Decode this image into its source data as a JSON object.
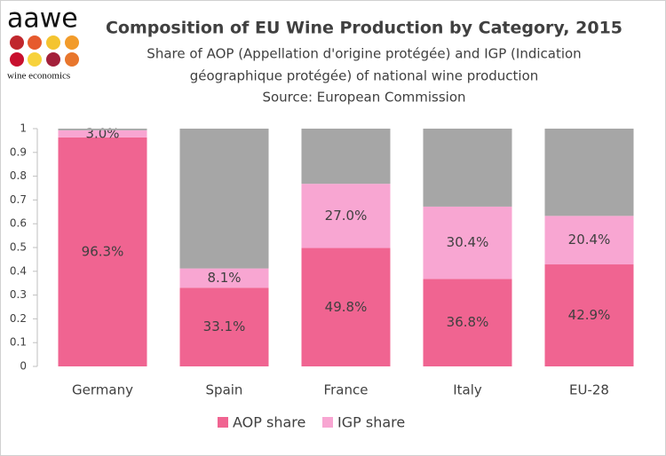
{
  "logo": {
    "name": "aawe",
    "tagline": "wine economics"
  },
  "chart_data": {
    "type": "stacked_bar",
    "title": "Composition of EU Wine Production by Category, 2015",
    "subtitle": [
      "Share of AOP (Appellation d'origine protégée) and IGP (Indication",
      "géographique protégée) of national wine production",
      "Source: European Commission"
    ],
    "categories": [
      "Germany",
      "Spain",
      "France",
      "Italy",
      "EU-28"
    ],
    "series": [
      {
        "name": "AOP share",
        "color": "#f06491",
        "values": [
          0.963,
          0.331,
          0.498,
          0.368,
          0.429
        ],
        "value_labels": [
          "96.3%",
          "33.1%",
          "49.8%",
          "36.8%",
          "42.9%"
        ]
      },
      {
        "name": "IGP share",
        "color": "#f8a6d2",
        "values": [
          0.03,
          0.081,
          0.27,
          0.304,
          0.204
        ],
        "value_labels": [
          "3.0%",
          "8.1%",
          "27.0%",
          "30.4%",
          "20.4%"
        ]
      },
      {
        "color": "#a6a6a6",
        "values": [
          0.007,
          0.588,
          0.232,
          0.328,
          0.367
        ]
      }
    ],
    "ylim": [
      0,
      1
    ],
    "yticks": [
      0,
      0.1,
      0.2,
      0.3,
      0.4,
      0.5,
      0.6,
      0.7,
      0.8,
      0.9,
      1
    ],
    "legend": "bottom"
  }
}
